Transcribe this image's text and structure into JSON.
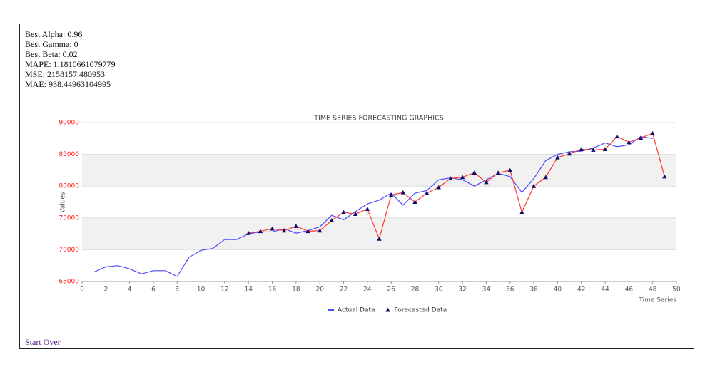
{
  "stats": [
    "Best Alpha: 0.96",
    "Best Gamma: 0",
    "Best Beta: 0.02",
    "MAPE: 1.1810661079779",
    "MSE: 2158157.480953",
    "MAE: 938.44963104995"
  ],
  "link": "Start Over",
  "chart_data": {
    "type": "line",
    "title": "TIME SERIES FORECASTING GRAPHICS",
    "x_label": "Time Series",
    "y_label": "Values",
    "x": [
      1,
      2,
      3,
      4,
      5,
      6,
      7,
      8,
      9,
      10,
      11,
      12,
      13,
      14,
      15,
      16,
      17,
      18,
      19,
      20,
      21,
      22,
      23,
      24,
      25,
      26,
      27,
      28,
      29,
      30,
      31,
      32,
      33,
      34,
      35,
      36,
      37,
      38,
      39,
      40,
      41,
      42,
      43,
      44,
      45,
      46,
      47,
      48,
      49
    ],
    "series": [
      {
        "name": "Actual Data",
        "color": "#4a4aff",
        "marker": "none",
        "values": [
          66500,
          67300,
          67500,
          67000,
          66200,
          66700,
          66700,
          65800,
          68800,
          69900,
          70200,
          71600,
          71600,
          72500,
          72800,
          72800,
          73300,
          72600,
          73000,
          73600,
          75400,
          74700,
          76000,
          77200,
          77800,
          78900,
          77000,
          78900,
          79300,
          81000,
          81300,
          81000,
          80000,
          81000,
          82000,
          81500,
          79000,
          81200,
          84000,
          85000,
          85400,
          85500,
          86000,
          86800,
          86200,
          86500,
          87800,
          87500,
          null
        ]
      },
      {
        "name": "Forecasted Data",
        "color": "#ff3b2f",
        "marker": "triangle",
        "marker_color": "#0b0b6e",
        "values": [
          null,
          null,
          null,
          null,
          null,
          null,
          null,
          null,
          null,
          null,
          null,
          null,
          null,
          72600,
          72900,
          73300,
          73000,
          73700,
          72900,
          73000,
          74600,
          75900,
          75600,
          76400,
          71700,
          78600,
          79000,
          77500,
          78900,
          79800,
          81200,
          81400,
          82100,
          80600,
          82100,
          82500,
          75900,
          80000,
          81400,
          84500,
          85100,
          85800,
          85700,
          85800,
          87800,
          86900,
          87600,
          88300,
          81500
        ]
      }
    ],
    "xlim": [
      0,
      50
    ],
    "xticks": [
      0,
      2,
      4,
      6,
      8,
      10,
      12,
      14,
      16,
      18,
      20,
      22,
      24,
      26,
      28,
      30,
      32,
      34,
      36,
      38,
      40,
      42,
      44,
      46,
      48,
      50
    ],
    "ylim": [
      65000,
      90000
    ],
    "yticks": [
      65000,
      70000,
      75000,
      80000,
      85000,
      90000
    ],
    "ytick_color": "#ff2020",
    "band_color": "#f1f1f1",
    "grid": true
  }
}
